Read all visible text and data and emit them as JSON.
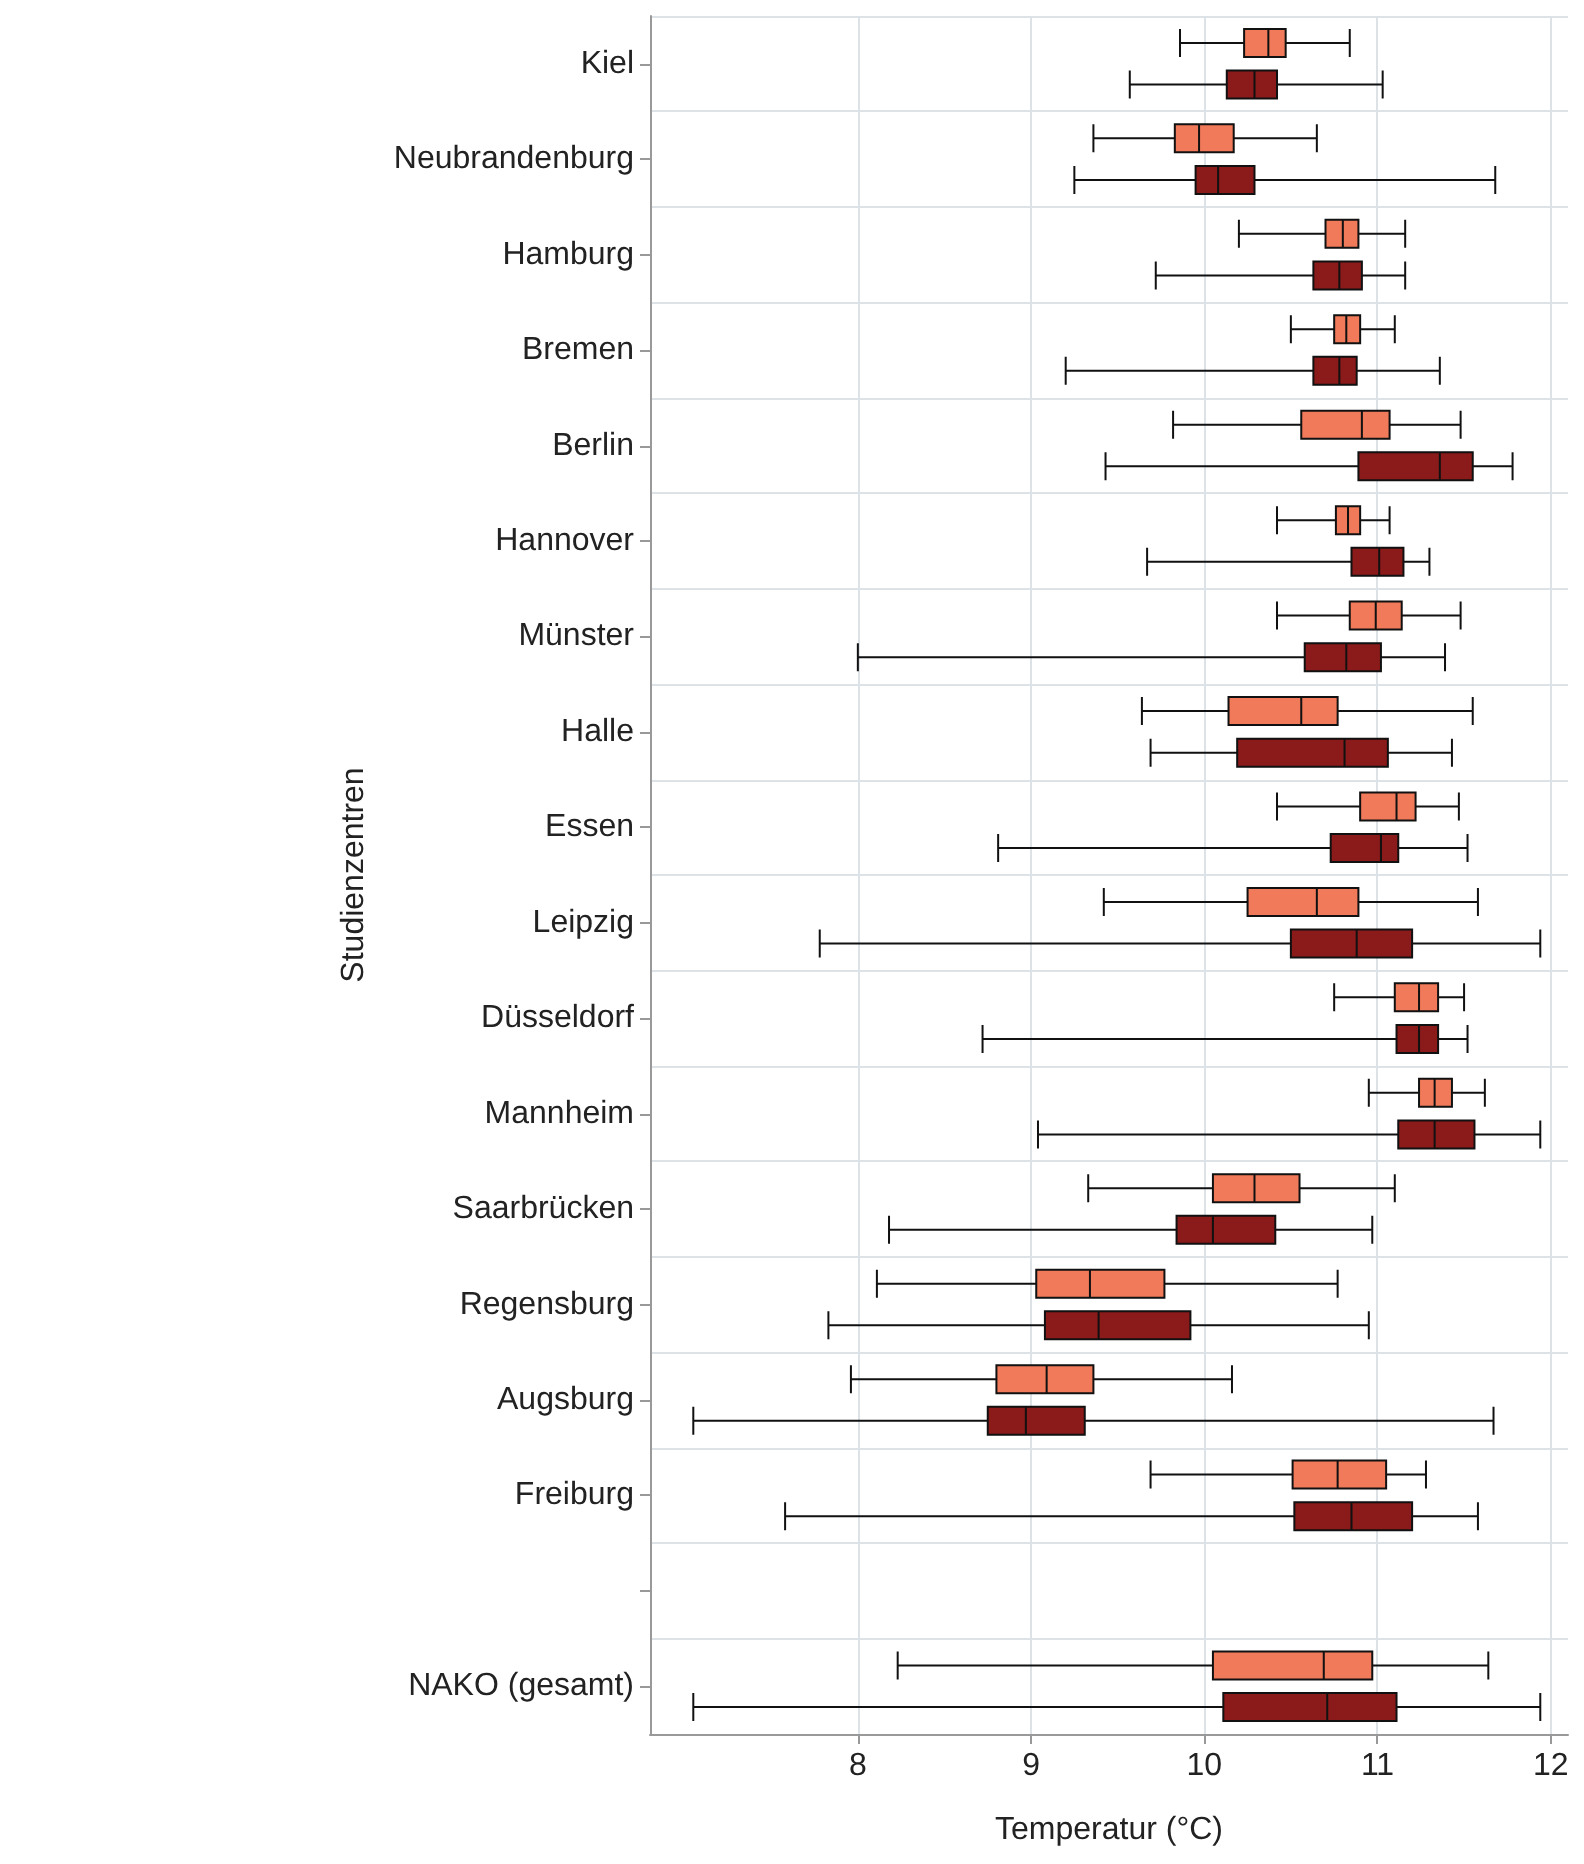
{
  "chart_data": {
    "type": "box",
    "orientation": "horizontal",
    "xlabel": "Temperatur (°C)",
    "ylabel": "Studienzentren",
    "categories": [
      "Kiel",
      "Neubrandenburg",
      "Hamburg",
      "Bremen",
      "Berlin",
      "Hannover",
      "Münster",
      "Halle",
      "Essen",
      "Leipzig",
      "Düsseldorf",
      "Mannheim",
      "Saarbrücken",
      "Regensburg",
      "Augsburg",
      "Freiburg",
      null,
      "NAKO (gesamt)"
    ],
    "xlim": [
      6.8,
      12.1
    ],
    "xticks": [
      8,
      9,
      10,
      11,
      12
    ],
    "grid": true,
    "series": [
      {
        "color": "#f07a5a",
        "boxes": [
          {
            "low": 9.86,
            "q1": 10.23,
            "median": 10.37,
            "q3": 10.47,
            "high": 10.84
          },
          {
            "low": 9.36,
            "q1": 9.83,
            "median": 9.97,
            "q3": 10.17,
            "high": 10.65
          },
          {
            "low": 10.2,
            "q1": 10.7,
            "median": 10.8,
            "q3": 10.89,
            "high": 11.16
          },
          {
            "low": 10.5,
            "q1": 10.75,
            "median": 10.82,
            "q3": 10.9,
            "high": 11.1
          },
          {
            "low": 9.82,
            "q1": 10.56,
            "median": 10.91,
            "q3": 11.07,
            "high": 11.48
          },
          {
            "low": 10.42,
            "q1": 10.76,
            "median": 10.83,
            "q3": 10.9,
            "high": 11.07
          },
          {
            "low": 10.42,
            "q1": 10.84,
            "median": 10.99,
            "q3": 11.14,
            "high": 11.48
          },
          {
            "low": 9.64,
            "q1": 10.14,
            "median": 10.56,
            "q3": 10.77,
            "high": 11.55
          },
          {
            "low": 10.42,
            "q1": 10.9,
            "median": 11.11,
            "q3": 11.22,
            "high": 11.47
          },
          {
            "low": 9.42,
            "q1": 10.25,
            "median": 10.65,
            "q3": 10.89,
            "high": 11.58
          },
          {
            "low": 10.75,
            "q1": 11.1,
            "median": 11.24,
            "q3": 11.35,
            "high": 11.5
          },
          {
            "low": 10.95,
            "q1": 11.24,
            "median": 11.33,
            "q3": 11.43,
            "high": 11.62
          },
          {
            "low": 9.33,
            "q1": 10.05,
            "median": 10.29,
            "q3": 10.55,
            "high": 11.1
          },
          {
            "low": 8.11,
            "q1": 9.03,
            "median": 9.34,
            "q3": 9.77,
            "high": 10.77
          },
          {
            "low": 7.96,
            "q1": 8.8,
            "median": 9.09,
            "q3": 9.36,
            "high": 10.16
          },
          {
            "low": 9.69,
            "q1": 10.51,
            "median": 10.77,
            "q3": 11.05,
            "high": 11.28
          },
          null,
          {
            "low": 8.23,
            "q1": 10.05,
            "median": 10.69,
            "q3": 10.97,
            "high": 11.64
          }
        ]
      },
      {
        "color": "#8b1a1a",
        "boxes": [
          {
            "low": 9.57,
            "q1": 10.13,
            "median": 10.29,
            "q3": 10.42,
            "high": 11.03
          },
          {
            "low": 9.25,
            "q1": 9.95,
            "median": 10.08,
            "q3": 10.29,
            "high": 11.68
          },
          {
            "low": 9.72,
            "q1": 10.63,
            "median": 10.78,
            "q3": 10.91,
            "high": 11.16
          },
          {
            "low": 9.2,
            "q1": 10.63,
            "median": 10.78,
            "q3": 10.88,
            "high": 11.36
          },
          {
            "low": 9.43,
            "q1": 10.89,
            "median": 11.36,
            "q3": 11.55,
            "high": 11.78
          },
          {
            "low": 9.67,
            "q1": 10.85,
            "median": 11.01,
            "q3": 11.15,
            "high": 11.3
          },
          {
            "low": 8.0,
            "q1": 10.58,
            "median": 10.82,
            "q3": 11.02,
            "high": 11.39
          },
          {
            "low": 9.69,
            "q1": 10.19,
            "median": 10.81,
            "q3": 11.06,
            "high": 11.43
          },
          {
            "low": 8.81,
            "q1": 10.73,
            "median": 11.02,
            "q3": 11.12,
            "high": 11.52
          },
          {
            "low": 7.78,
            "q1": 10.5,
            "median": 10.88,
            "q3": 11.2,
            "high": 11.94
          },
          {
            "low": 8.72,
            "q1": 11.11,
            "median": 11.24,
            "q3": 11.35,
            "high": 11.52
          },
          {
            "low": 9.04,
            "q1": 11.12,
            "median": 11.33,
            "q3": 11.56,
            "high": 11.94
          },
          {
            "low": 8.18,
            "q1": 9.84,
            "median": 10.05,
            "q3": 10.41,
            "high": 10.97
          },
          {
            "low": 7.83,
            "q1": 9.08,
            "median": 9.39,
            "q3": 9.92,
            "high": 10.95
          },
          {
            "low": 7.05,
            "q1": 8.75,
            "median": 8.97,
            "q3": 9.31,
            "high": 11.67
          },
          {
            "low": 7.58,
            "q1": 10.52,
            "median": 10.85,
            "q3": 11.2,
            "high": 11.58
          },
          null,
          {
            "low": 7.05,
            "q1": 10.11,
            "median": 10.71,
            "q3": 11.11,
            "high": 11.94
          }
        ]
      }
    ]
  }
}
